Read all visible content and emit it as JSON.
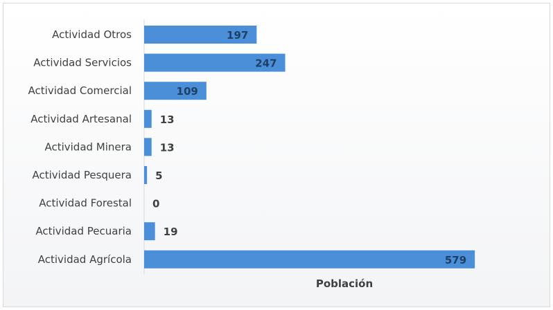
{
  "chart_data": {
    "type": "bar",
    "orientation": "horizontal",
    "categories": [
      "Actividad Otros",
      "Actividad Servicios",
      "Actividad Comercial",
      "Actividad Artesanal",
      "Actividad Minera",
      "Actividad Pesquera",
      "Actividad Forestal",
      "Actividad Pecuaria",
      "Actividad Agrícola"
    ],
    "series": [
      {
        "values": [
          197,
          247,
          109,
          13,
          13,
          5,
          0,
          19,
          579
        ]
      }
    ],
    "xlabel": "Población",
    "ylabel": "",
    "xlim": [
      0,
      580
    ],
    "grid": false,
    "legend": "none",
    "bar_color": "#4a8fd8",
    "label_color": "#404040"
  }
}
